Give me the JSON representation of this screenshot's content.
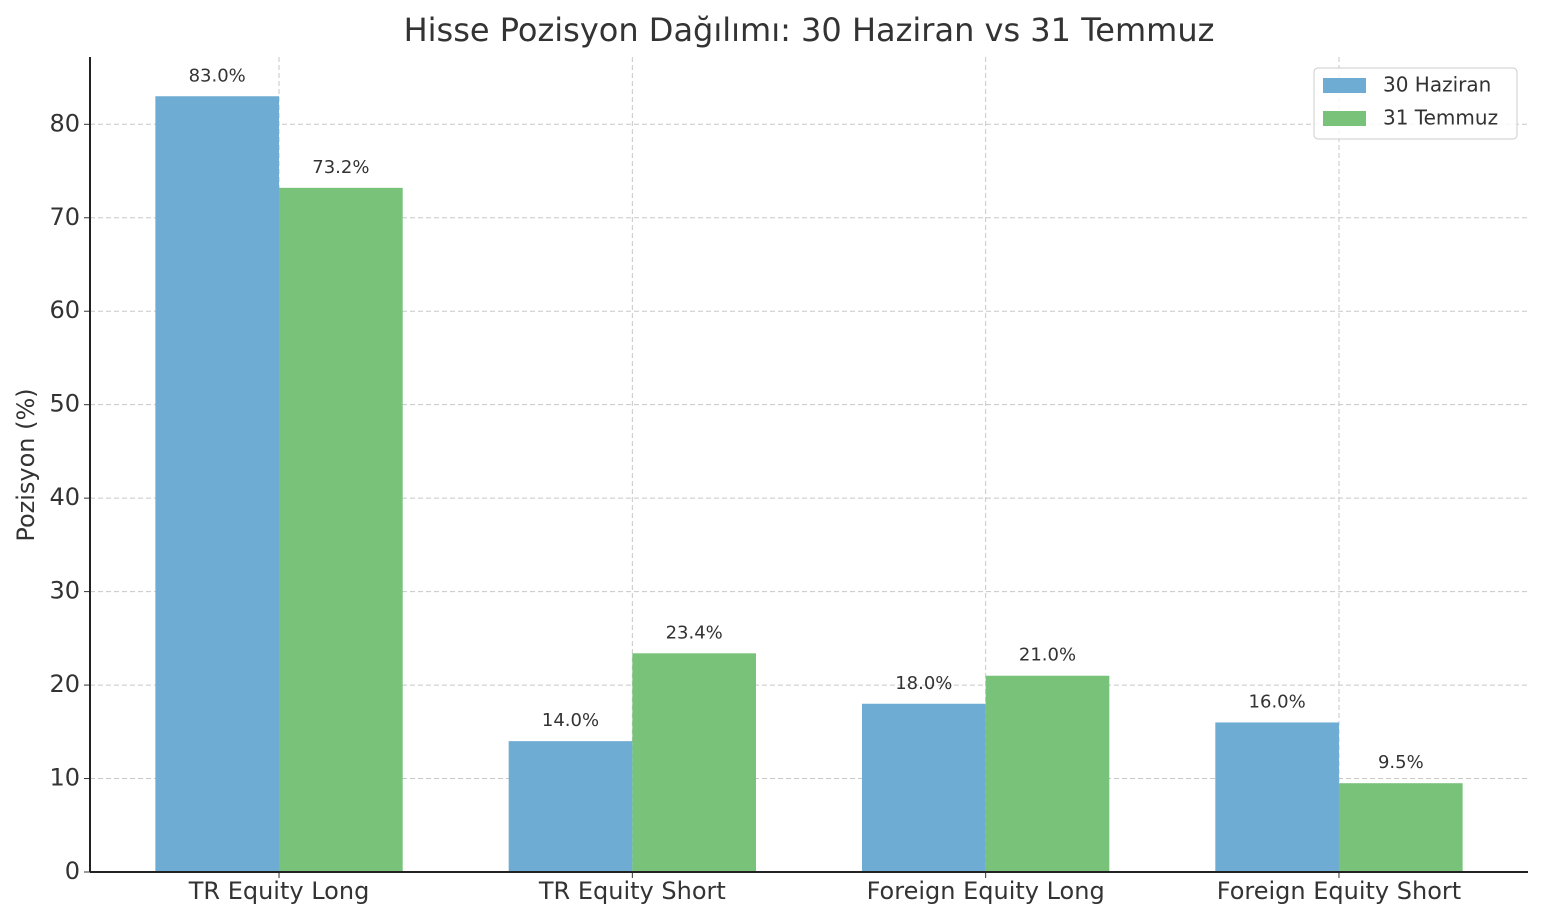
{
  "chart_data": {
    "type": "bar",
    "title": "Hisse Pozisyon Dağılımı: 30 Haziran vs 31 Temmuz",
    "ylabel": "Pozisyon (%)",
    "categories": [
      "TR Equity Long",
      "TR Equity Short",
      "Foreign Equity Long",
      "Foreign Equity Short"
    ],
    "series": [
      {
        "name": "30 Haziran",
        "color": "#6eacd3",
        "values": [
          83.0,
          14.0,
          18.0,
          16.0
        ],
        "value_labels": [
          "83.0%",
          "14.0%",
          "18.0%",
          "16.0%"
        ]
      },
      {
        "name": "31 Temmuz",
        "color": "#78c27a",
        "values": [
          73.2,
          23.4,
          21.0,
          9.5
        ],
        "value_labels": [
          "73.2%",
          "23.4%",
          "21.0%",
          "9.5%"
        ]
      }
    ],
    "ylim": [
      0,
      87.2
    ],
    "yticks": [
      0,
      10,
      20,
      30,
      40,
      50,
      60,
      70,
      80
    ],
    "grid": true,
    "legend": "upper right"
  }
}
